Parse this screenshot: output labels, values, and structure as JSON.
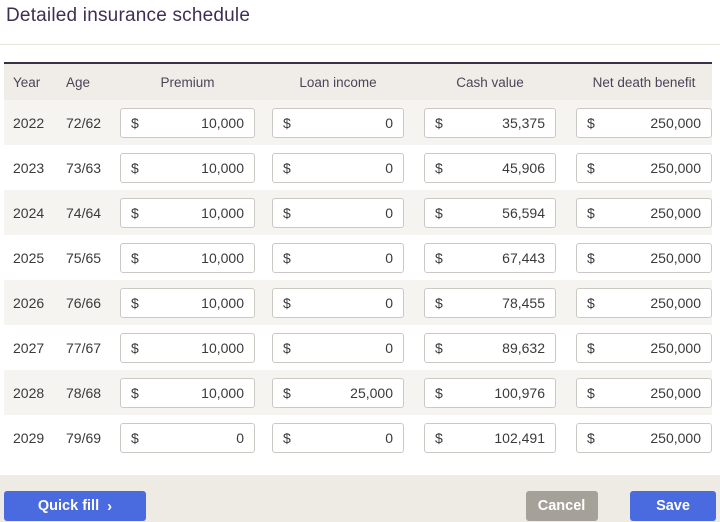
{
  "title": "Detailed insurance schedule",
  "currency_symbol": "$",
  "table": {
    "headers": {
      "year": "Year",
      "age": "Age",
      "premium": "Premium",
      "loan_income": "Loan income",
      "cash_value": "Cash value",
      "net_death_benefit": "Net death benefit"
    },
    "rows": [
      {
        "year": "2022",
        "age": "72/62",
        "premium": "10,000",
        "loan_income": "0",
        "cash_value": "35,375",
        "net_death_benefit": "250,000"
      },
      {
        "year": "2023",
        "age": "73/63",
        "premium": "10,000",
        "loan_income": "0",
        "cash_value": "45,906",
        "net_death_benefit": "250,000"
      },
      {
        "year": "2024",
        "age": "74/64",
        "premium": "10,000",
        "loan_income": "0",
        "cash_value": "56,594",
        "net_death_benefit": "250,000"
      },
      {
        "year": "2025",
        "age": "75/65",
        "premium": "10,000",
        "loan_income": "0",
        "cash_value": "67,443",
        "net_death_benefit": "250,000"
      },
      {
        "year": "2026",
        "age": "76/66",
        "premium": "10,000",
        "loan_income": "0",
        "cash_value": "78,455",
        "net_death_benefit": "250,000"
      },
      {
        "year": "2027",
        "age": "77/67",
        "premium": "10,000",
        "loan_income": "0",
        "cash_value": "89,632",
        "net_death_benefit": "250,000"
      },
      {
        "year": "2028",
        "age": "78/68",
        "premium": "10,000",
        "loan_income": "25,000",
        "cash_value": "100,976",
        "net_death_benefit": "250,000"
      },
      {
        "year": "2029",
        "age": "79/69",
        "premium": "0",
        "loan_income": "0",
        "cash_value": "102,491",
        "net_death_benefit": "250,000"
      }
    ]
  },
  "footer": {
    "quick_fill_label": "Quick fill",
    "quick_fill_chevron": "›",
    "cancel_label": "Cancel",
    "save_label": "Save"
  },
  "colors": {
    "accent_blue": "#4a6bdf",
    "cancel_gray": "#a5a098",
    "title_purple": "#3e2f52",
    "header_beige": "#f0ede8",
    "footer_beige": "#eeebe5",
    "row_stripe": "#f5f4f1"
  }
}
